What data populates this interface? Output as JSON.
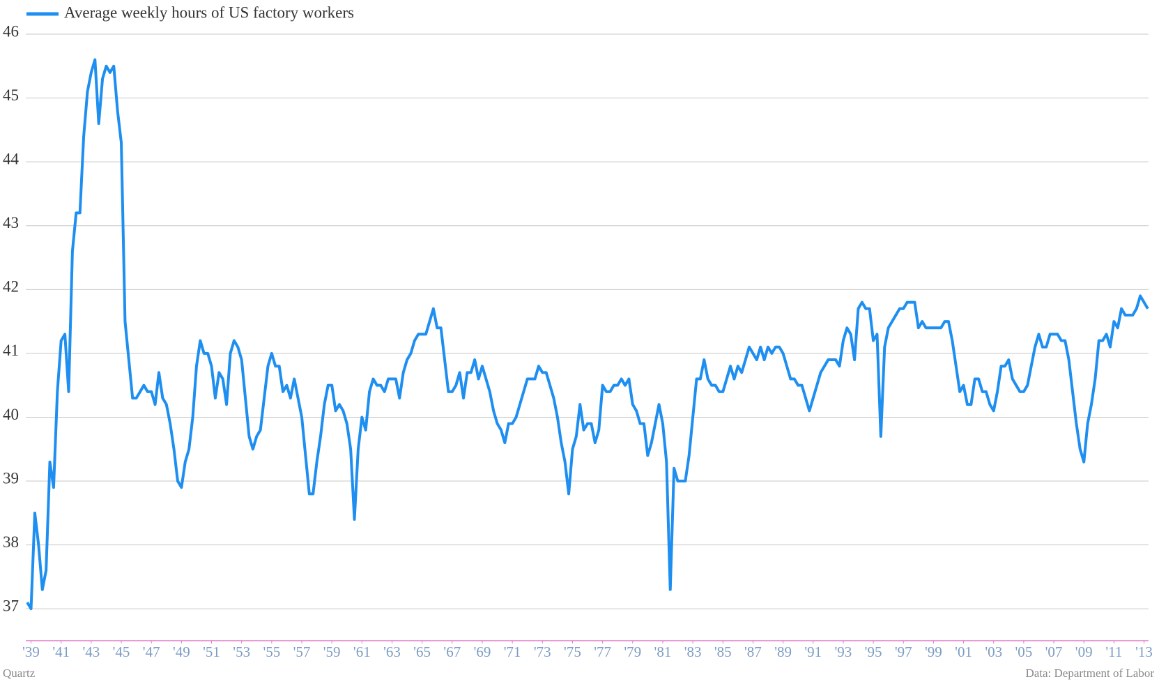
{
  "chart_data": {
    "type": "line",
    "series": [
      {
        "name": "Average weekly hours of US factory workers",
        "color": "#1e8ff0",
        "x": [
          1938.75,
          1939,
          1939.25,
          1939.5,
          1939.75,
          1940,
          1940.25,
          1940.5,
          1940.75,
          1941,
          1941.25,
          1941.5,
          1941.75,
          1942,
          1942.25,
          1942.5,
          1942.75,
          1943,
          1943.25,
          1943.5,
          1943.75,
          1944,
          1944.25,
          1944.5,
          1944.75,
          1945,
          1945.25,
          1945.5,
          1945.75,
          1946,
          1946.25,
          1946.5,
          1946.75,
          1947,
          1947.25,
          1947.5,
          1947.75,
          1948,
          1948.25,
          1948.5,
          1948.75,
          1949,
          1949.25,
          1949.5,
          1949.75,
          1950,
          1950.25,
          1950.5,
          1950.75,
          1951,
          1951.25,
          1951.5,
          1951.75,
          1952,
          1952.25,
          1952.5,
          1952.75,
          1953,
          1953.25,
          1953.5,
          1953.75,
          1954,
          1954.25,
          1954.5,
          1954.75,
          1955,
          1955.25,
          1955.5,
          1955.75,
          1956,
          1956.25,
          1956.5,
          1956.75,
          1957,
          1957.25,
          1957.5,
          1957.75,
          1958,
          1958.25,
          1958.5,
          1958.75,
          1959,
          1959.25,
          1959.5,
          1959.75,
          1960,
          1960.25,
          1960.5,
          1960.75,
          1961,
          1961.25,
          1961.5,
          1961.75,
          1962,
          1962.25,
          1962.5,
          1962.75,
          1963,
          1963.25,
          1963.5,
          1963.75,
          1964,
          1964.25,
          1964.5,
          1964.75,
          1965,
          1965.25,
          1965.5,
          1965.75,
          1966,
          1966.25,
          1966.5,
          1966.75,
          1967,
          1967.25,
          1967.5,
          1967.75,
          1968,
          1968.25,
          1968.5,
          1968.75,
          1969,
          1969.25,
          1969.5,
          1969.75,
          1970,
          1970.25,
          1970.5,
          1970.75,
          1971,
          1971.25,
          1971.5,
          1971.75,
          1972,
          1972.25,
          1972.5,
          1972.75,
          1973,
          1973.25,
          1973.5,
          1973.75,
          1974,
          1974.25,
          1974.5,
          1974.75,
          1975,
          1975.25,
          1975.5,
          1975.75,
          1976,
          1976.25,
          1976.5,
          1976.75,
          1977,
          1977.25,
          1977.5,
          1977.75,
          1978,
          1978.25,
          1978.5,
          1978.75,
          1979,
          1979.25,
          1979.5,
          1979.75,
          1980,
          1980.25,
          1980.5,
          1980.75,
          1981,
          1981.25,
          1981.5,
          1981.75,
          1982,
          1982.25,
          1982.5,
          1982.75,
          1983,
          1983.25,
          1983.5,
          1983.75,
          1984,
          1984.25,
          1984.5,
          1984.75,
          1985,
          1985.25,
          1985.5,
          1985.75,
          1986,
          1986.25,
          1986.5,
          1986.75,
          1987,
          1987.25,
          1987.5,
          1987.75,
          1988,
          1988.25,
          1988.5,
          1988.75,
          1989,
          1989.25,
          1989.5,
          1989.75,
          1990,
          1990.25,
          1990.5,
          1990.75,
          1991,
          1991.25,
          1991.5,
          1991.75,
          1992,
          1992.25,
          1992.5,
          1992.75,
          1993,
          1993.25,
          1993.5,
          1993.75,
          1994,
          1994.25,
          1994.5,
          1994.75,
          1995,
          1995.25,
          1995.5,
          1995.75,
          1996,
          1996.25,
          1996.5,
          1996.75,
          1997,
          1997.25,
          1997.5,
          1997.75,
          1998,
          1998.25,
          1998.5,
          1998.75,
          1999,
          1999.25,
          1999.5,
          1999.75,
          2000,
          2000.25,
          2000.5,
          2000.75,
          2001,
          2001.25,
          2001.5,
          2001.75,
          2002,
          2002.25,
          2002.5,
          2002.75,
          2003,
          2003.25,
          2003.5,
          2003.75,
          2004,
          2004.25,
          2004.5,
          2004.75,
          2005,
          2005.25,
          2005.5,
          2005.75,
          2006,
          2006.25,
          2006.5,
          2006.75,
          2007,
          2007.25,
          2007.5,
          2007.75,
          2008,
          2008.25,
          2008.5,
          2008.75,
          2009,
          2009.25,
          2009.5,
          2009.75,
          2010,
          2010.25,
          2010.5,
          2010.75,
          2011,
          2011.25,
          2011.5,
          2011.75,
          2012,
          2012.25,
          2012.5,
          2012.75,
          2013,
          2013.25
        ],
        "values": [
          37.1,
          37.0,
          38.5,
          38.0,
          37.3,
          37.6,
          39.3,
          38.9,
          40.4,
          41.2,
          41.3,
          40.4,
          42.6,
          43.2,
          43.2,
          44.4,
          45.1,
          45.4,
          45.6,
          44.6,
          45.3,
          45.5,
          45.4,
          45.5,
          44.8,
          44.3,
          41.5,
          40.9,
          40.3,
          40.3,
          40.4,
          40.5,
          40.4,
          40.4,
          40.2,
          40.7,
          40.3,
          40.2,
          39.9,
          39.5,
          39.0,
          38.9,
          39.3,
          39.5,
          40.0,
          40.8,
          41.2,
          41.0,
          41.0,
          40.8,
          40.3,
          40.7,
          40.6,
          40.2,
          41.0,
          41.2,
          41.1,
          40.9,
          40.3,
          39.7,
          39.5,
          39.7,
          39.8,
          40.3,
          40.8,
          41.0,
          40.8,
          40.8,
          40.4,
          40.5,
          40.3,
          40.6,
          40.3,
          40.0,
          39.4,
          38.8,
          38.8,
          39.3,
          39.7,
          40.2,
          40.5,
          40.5,
          40.1,
          40.2,
          40.1,
          39.9,
          39.5,
          38.4,
          39.5,
          40.0,
          39.8,
          40.4,
          40.6,
          40.5,
          40.5,
          40.4,
          40.6,
          40.6,
          40.6,
          40.3,
          40.7,
          40.9,
          41.0,
          41.2,
          41.3,
          41.3,
          41.3,
          41.5,
          41.7,
          41.4,
          41.4,
          40.9,
          40.4,
          40.4,
          40.5,
          40.7,
          40.3,
          40.7,
          40.7,
          40.9,
          40.6,
          40.8,
          40.6,
          40.4,
          40.1,
          39.9,
          39.8,
          39.6,
          39.9,
          39.9,
          40.0,
          40.2,
          40.4,
          40.6,
          40.6,
          40.6,
          40.8,
          40.7,
          40.7,
          40.5,
          40.3,
          40.0,
          39.6,
          39.3,
          38.8,
          39.5,
          39.7,
          40.2,
          39.8,
          39.9,
          39.9,
          39.6,
          39.8,
          40.5,
          40.4,
          40.4,
          40.5,
          40.5,
          40.6,
          40.5,
          40.6,
          40.2,
          40.1,
          39.9,
          39.9,
          39.4,
          39.6,
          39.9,
          40.2,
          39.9,
          39.3,
          37.3,
          39.2,
          39.0,
          39.0,
          39.0,
          39.4,
          40.0,
          40.6,
          40.6,
          40.9,
          40.6,
          40.5,
          40.5,
          40.4,
          40.4,
          40.6,
          40.8,
          40.6,
          40.8,
          40.7,
          40.9,
          41.1,
          41.0,
          40.9,
          41.1,
          40.9,
          41.1,
          41.0,
          41.1,
          41.1,
          41.0,
          40.8,
          40.6,
          40.6,
          40.5,
          40.5,
          40.3,
          40.1,
          40.3,
          40.5,
          40.7,
          40.8,
          40.9,
          40.9,
          40.9,
          40.8,
          41.2,
          41.4,
          41.3,
          40.9,
          41.7,
          41.8,
          41.7,
          41.7,
          41.2,
          41.3,
          39.7,
          41.1,
          41.4,
          41.5,
          41.6,
          41.7,
          41.7,
          41.8,
          41.8,
          41.8,
          41.4,
          41.5,
          41.4,
          41.4,
          41.4,
          41.4,
          41.4,
          41.5,
          41.5,
          41.2,
          40.8,
          40.4,
          40.5,
          40.2,
          40.2,
          40.6,
          40.6,
          40.4,
          40.4,
          40.2,
          40.1,
          40.4,
          40.8,
          40.8,
          40.9,
          40.6,
          40.5,
          40.4,
          40.4,
          40.5,
          40.8,
          41.1,
          41.3,
          41.1,
          41.1,
          41.3,
          41.3,
          41.3,
          41.2,
          41.2,
          40.9,
          40.4,
          39.9,
          39.5,
          39.3,
          39.9,
          40.2,
          40.6,
          41.2,
          41.2,
          41.3,
          41.1,
          41.5,
          41.4,
          41.7,
          41.6,
          41.6,
          41.6,
          41.7,
          41.9,
          41.8,
          41.7
        ]
      }
    ],
    "legend": "top-left",
    "xlim": [
      1938.65,
      2013.3
    ],
    "xticks": [
      {
        "value": 1939,
        "label": "'39"
      },
      {
        "value": 1941,
        "label": "'41"
      },
      {
        "value": 1943,
        "label": "'43"
      },
      {
        "value": 1945,
        "label": "'45"
      },
      {
        "value": 1947,
        "label": "'47"
      },
      {
        "value": 1949,
        "label": "'49"
      },
      {
        "value": 1951,
        "label": "'51"
      },
      {
        "value": 1953,
        "label": "'53"
      },
      {
        "value": 1955,
        "label": "'55"
      },
      {
        "value": 1957,
        "label": "'57"
      },
      {
        "value": 1959,
        "label": "'59"
      },
      {
        "value": 1961,
        "label": "'61"
      },
      {
        "value": 1963,
        "label": "'63"
      },
      {
        "value": 1965,
        "label": "'65"
      },
      {
        "value": 1967,
        "label": "'67"
      },
      {
        "value": 1969,
        "label": "'69"
      },
      {
        "value": 1971,
        "label": "'71"
      },
      {
        "value": 1973,
        "label": "'73"
      },
      {
        "value": 1975,
        "label": "'75"
      },
      {
        "value": 1977,
        "label": "'77"
      },
      {
        "value": 1979,
        "label": "'79"
      },
      {
        "value": 1981,
        "label": "'81"
      },
      {
        "value": 1983,
        "label": "'83"
      },
      {
        "value": 1985,
        "label": "'85"
      },
      {
        "value": 1987,
        "label": "'87"
      },
      {
        "value": 1989,
        "label": "'89"
      },
      {
        "value": 1991,
        "label": "'91"
      },
      {
        "value": 1993,
        "label": "'93"
      },
      {
        "value": 1995,
        "label": "'95"
      },
      {
        "value": 1997,
        "label": "'97"
      },
      {
        "value": 1999,
        "label": "'99"
      },
      {
        "value": 2001,
        "label": "'01"
      },
      {
        "value": 2003,
        "label": "'03"
      },
      {
        "value": 2005,
        "label": "'05"
      },
      {
        "value": 2007,
        "label": "'07"
      },
      {
        "value": 2009,
        "label": "'09"
      },
      {
        "value": 2011,
        "label": "'11"
      },
      {
        "value": 2013,
        "label": "'13"
      }
    ],
    "ylim": [
      36.5,
      46
    ],
    "yticks": [
      37,
      38,
      39,
      40,
      41,
      42,
      43,
      44,
      45,
      46
    ],
    "grid": true,
    "credit": "Quartz",
    "source": "Data: Department of Labor"
  }
}
